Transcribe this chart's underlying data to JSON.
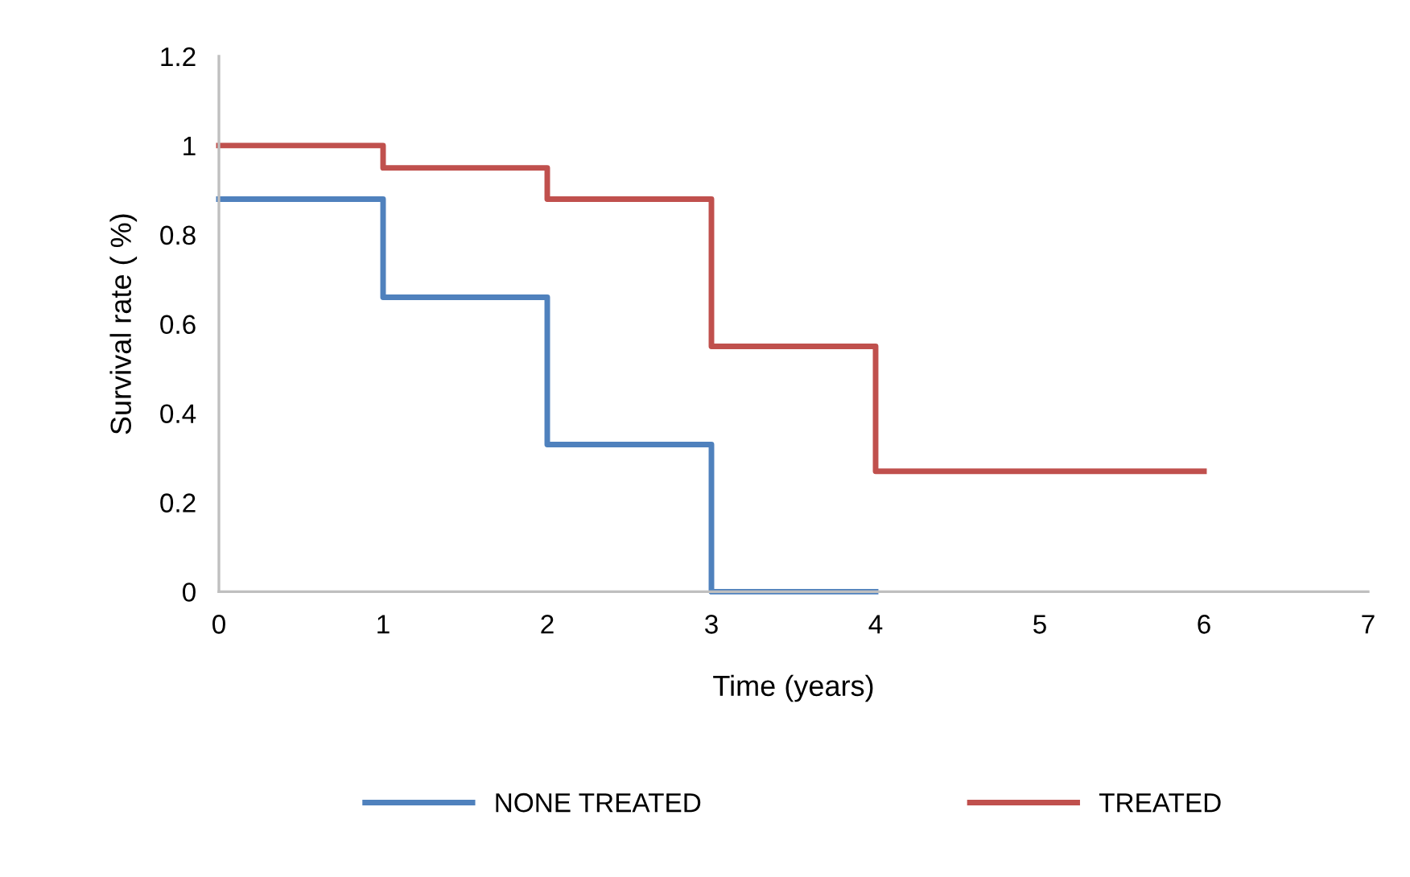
{
  "chart_data": {
    "type": "step",
    "xlabel": "Time (years)",
    "ylabel": "Survival rate ( %)",
    "series": [
      {
        "name": "NONE TREATED",
        "color": "#4f81bd",
        "x": [
          0,
          1,
          2,
          3,
          4
        ],
        "values": [
          0.88,
          0.66,
          0.33,
          0,
          0
        ]
      },
      {
        "name": "TREATED",
        "color": "#c0504d",
        "x": [
          0,
          1,
          2,
          3,
          4,
          6
        ],
        "values": [
          1,
          0.95,
          0.88,
          0.55,
          0.27,
          0.27
        ]
      }
    ],
    "xlim": [
      0,
      7
    ],
    "xticks": [
      0,
      1,
      2,
      3,
      4,
      5,
      6,
      7
    ],
    "ylim": [
      0,
      1.2
    ],
    "yticks": [
      0,
      0.2,
      0.4,
      0.6,
      0.8,
      1,
      1.2
    ],
    "grid": false,
    "legend": "bottom",
    "marker": "none",
    "line_style": "solid"
  }
}
